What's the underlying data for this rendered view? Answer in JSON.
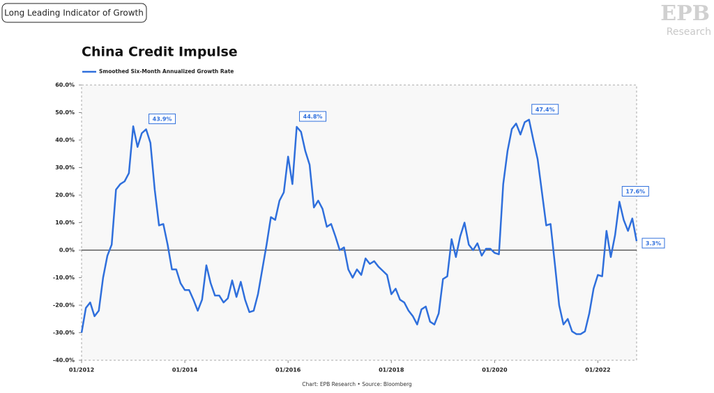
{
  "header": {
    "tag": "Long Leading Indicator of Growth",
    "logo": "EPB",
    "logo_sub": "Research"
  },
  "chart_data": {
    "type": "line",
    "title": "China Credit Impulse",
    "source": "Chart: EPB Research  •  Source: Bloomberg",
    "x": [
      "2012-01",
      "2012-02",
      "2012-03",
      "2012-04",
      "2012-05",
      "2012-06",
      "2012-07",
      "2012-08",
      "2012-09",
      "2012-10",
      "2012-11",
      "2012-12",
      "2013-01",
      "2013-02",
      "2013-03",
      "2013-04",
      "2013-05",
      "2013-06",
      "2013-07",
      "2013-08",
      "2013-09",
      "2013-10",
      "2013-11",
      "2013-12",
      "2014-01",
      "2014-02",
      "2014-03",
      "2014-04",
      "2014-05",
      "2014-06",
      "2014-07",
      "2014-08",
      "2014-09",
      "2014-10",
      "2014-11",
      "2014-12",
      "2015-01",
      "2015-02",
      "2015-03",
      "2015-04",
      "2015-05",
      "2015-06",
      "2015-07",
      "2015-08",
      "2015-09",
      "2015-10",
      "2015-11",
      "2015-12",
      "2016-01",
      "2016-02",
      "2016-03",
      "2016-04",
      "2016-05",
      "2016-06",
      "2016-07",
      "2016-08",
      "2016-09",
      "2016-10",
      "2016-11",
      "2016-12",
      "2017-01",
      "2017-02",
      "2017-03",
      "2017-04",
      "2017-05",
      "2017-06",
      "2017-07",
      "2017-08",
      "2017-09",
      "2017-10",
      "2017-11",
      "2017-12",
      "2018-01",
      "2018-02",
      "2018-03",
      "2018-04",
      "2018-05",
      "2018-06",
      "2018-07",
      "2018-08",
      "2018-09",
      "2018-10",
      "2018-11",
      "2018-12",
      "2019-01",
      "2019-02",
      "2019-03",
      "2019-04",
      "2019-05",
      "2019-06",
      "2019-07",
      "2019-08",
      "2019-09",
      "2019-10",
      "2019-11",
      "2019-12",
      "2020-01",
      "2020-02",
      "2020-03",
      "2020-04",
      "2020-05",
      "2020-06",
      "2020-07",
      "2020-08",
      "2020-09",
      "2020-10",
      "2020-11",
      "2020-12",
      "2021-01",
      "2021-02",
      "2021-03",
      "2021-04",
      "2021-05",
      "2021-06",
      "2021-07",
      "2021-08",
      "2021-09",
      "2021-10",
      "2021-11",
      "2021-12",
      "2022-01",
      "2022-02",
      "2022-03",
      "2022-04",
      "2022-05",
      "2022-06",
      "2022-07",
      "2022-08",
      "2022-09",
      "2022-10"
    ],
    "series": [
      {
        "name": "Smoothed Six-Month Annualized Growth Rate",
        "color": "#2f6fdc",
        "values": [
          -30,
          -21,
          -19,
          -24,
          -22,
          -10,
          -2,
          2,
          22,
          24,
          25,
          28,
          45,
          37.5,
          42.5,
          43.9,
          39,
          22,
          9,
          9.5,
          2,
          -7,
          -7,
          -12,
          -14.5,
          -14.5,
          -18,
          -22,
          -18,
          -5.5,
          -12,
          -16.5,
          -16.5,
          -19,
          -17.5,
          -11,
          -17,
          -11.5,
          -18,
          -22.5,
          -22,
          -16,
          -7,
          2,
          12,
          11,
          18,
          21,
          34,
          24,
          44.8,
          43,
          36,
          31,
          15.5,
          18,
          15,
          8.5,
          9.5,
          5,
          0,
          1,
          -7,
          -10,
          -7,
          -9,
          -3,
          -5,
          -4,
          -6,
          -7.5,
          -9,
          -16,
          -14,
          -18,
          -19,
          -22,
          -24,
          -27,
          -21.5,
          -20.5,
          -26,
          -27,
          -23,
          -10.5,
          -9.5,
          4,
          -2.5,
          5,
          10,
          2,
          0,
          2.5,
          -2,
          0.5,
          0.5,
          -1,
          -1.5,
          24,
          36,
          44,
          46,
          42,
          46.5,
          47.4,
          40,
          33,
          21,
          9,
          9.5,
          -5,
          -20,
          -27,
          -25,
          -29.5,
          -30.5,
          -30.5,
          -29.5,
          -23,
          -14,
          -9,
          -9.5,
          7,
          -2.5,
          5.5,
          17.6,
          11,
          7,
          11.5,
          3.3
        ],
        "value_labels": [
          null,
          null,
          null,
          null,
          null,
          null,
          null,
          null,
          null,
          null,
          null,
          null,
          null,
          null,
          null,
          "43.9%",
          null,
          null,
          null,
          null,
          null,
          null,
          null,
          null,
          null,
          null,
          null,
          null,
          null,
          null,
          null,
          null,
          null,
          null,
          null,
          null,
          null,
          null,
          null,
          null,
          null,
          null,
          null,
          null,
          null,
          null,
          null,
          null,
          null,
          null,
          "44.8%",
          null,
          null,
          null,
          null,
          null,
          null,
          null,
          null,
          null,
          null,
          null,
          null,
          null,
          null,
          null,
          null,
          null,
          null,
          null,
          null,
          null,
          null,
          null,
          null,
          null,
          null,
          null,
          null,
          null,
          null,
          null,
          null,
          null,
          null,
          null,
          null,
          null,
          null,
          null,
          null,
          null,
          null,
          null,
          null,
          null,
          null,
          null,
          null,
          null,
          null,
          null,
          null,
          null,
          "47.4%",
          null,
          null,
          null,
          null,
          null,
          null,
          null,
          null,
          null,
          null,
          null,
          null,
          null,
          null,
          null,
          null,
          null,
          null,
          null,
          null,
          "17.6%",
          null,
          null,
          null,
          "3.3%"
        ]
      }
    ],
    "xlim": [
      "2012-01",
      "2022-10"
    ],
    "xticks": [
      {
        "value": "2012-01",
        "label": "01/2012"
      },
      {
        "value": "2014-01",
        "label": "01/2014"
      },
      {
        "value": "2016-01",
        "label": "01/2016"
      },
      {
        "value": "2018-01",
        "label": "01/2018"
      },
      {
        "value": "2020-01",
        "label": "01/2020"
      },
      {
        "value": "2022-01",
        "label": "01/2022"
      }
    ],
    "ylim": [
      -40,
      60
    ],
    "yticks": [
      {
        "value": -40,
        "label": "-40.0%"
      },
      {
        "value": -30,
        "label": "-30.0%"
      },
      {
        "value": -20,
        "label": "-20.0%"
      },
      {
        "value": -10,
        "label": "-10.0%"
      },
      {
        "value": 0,
        "label": "0.0%"
      },
      {
        "value": 10,
        "label": "10.0%"
      },
      {
        "value": 20,
        "label": "20.0%"
      },
      {
        "value": 30,
        "label": "30.0%"
      },
      {
        "value": 40,
        "label": "40.0%"
      },
      {
        "value": 50,
        "label": "50.0%"
      },
      {
        "value": 60,
        "label": "60.0%"
      }
    ],
    "legend": "top-left"
  }
}
